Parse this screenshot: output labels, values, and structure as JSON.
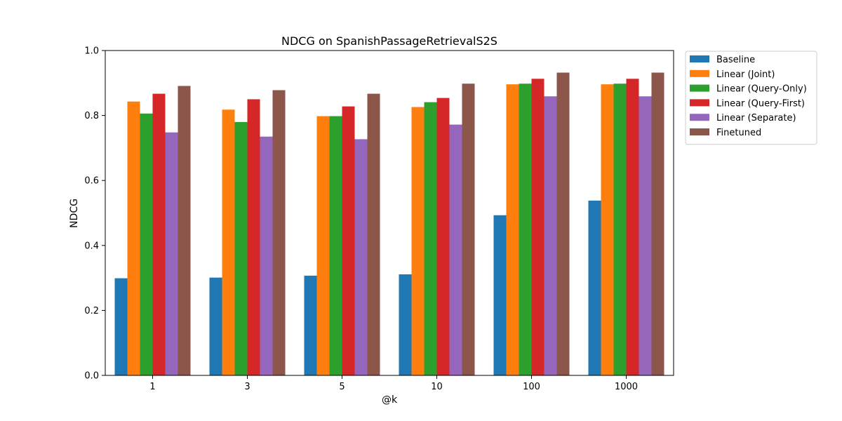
{
  "chart_data": {
    "type": "bar",
    "title": "NDCG on SpanishPassageRetrievalS2S",
    "xlabel": "@k",
    "ylabel": "NDCG",
    "ylim": [
      0,
      1
    ],
    "yticks": [
      "0.0",
      "0.2",
      "0.4",
      "0.6",
      "0.8",
      "1.0"
    ],
    "categories": [
      "1",
      "3",
      "5",
      "10",
      "100",
      "1000"
    ],
    "grid": false,
    "legend_position": "outside-right-top",
    "series": [
      {
        "name": "Baseline",
        "color": "#1f77b4",
        "values": [
          0.299,
          0.301,
          0.307,
          0.311,
          0.493,
          0.538
        ]
      },
      {
        "name": "Linear (Joint)",
        "color": "#ff7f0e",
        "values": [
          0.843,
          0.818,
          0.798,
          0.826,
          0.896,
          0.896
        ]
      },
      {
        "name": "Linear (Query-Only)",
        "color": "#2ca02c",
        "values": [
          0.806,
          0.78,
          0.798,
          0.841,
          0.898,
          0.898
        ]
      },
      {
        "name": "Linear (Query-First)",
        "color": "#d62728",
        "values": [
          0.867,
          0.85,
          0.828,
          0.854,
          0.913,
          0.913
        ]
      },
      {
        "name": "Linear (Separate)",
        "color": "#9467bd",
        "values": [
          0.748,
          0.735,
          0.727,
          0.772,
          0.859,
          0.859
        ]
      },
      {
        "name": "Finetuned",
        "color": "#8c564b",
        "values": [
          0.891,
          0.878,
          0.867,
          0.898,
          0.932,
          0.932
        ]
      }
    ]
  }
}
